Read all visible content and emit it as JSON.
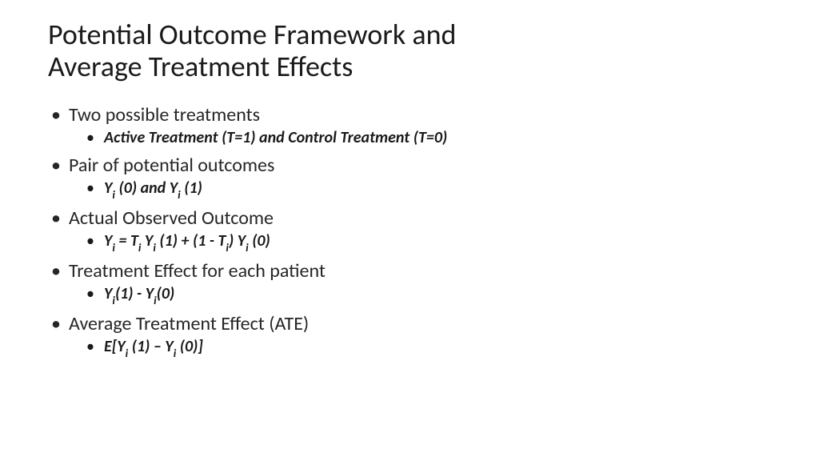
{
  "slide": {
    "title_line1": "Potential Outcome Framework and",
    "title_line2": "Average Treatment Effects",
    "title_fontsize": 36,
    "title_color": "#1a1a1a",
    "body_color": "#262626",
    "bullets": [
      {
        "text": "Two possible treatments",
        "sub": {
          "plain": "Active Treatment (T=1) and Control Treatment (T=0)"
        }
      },
      {
        "text": "Pair of potential outcomes",
        "sub": {
          "formula": [
            {
              "t": "Y"
            },
            {
              "s": "i"
            },
            {
              "t": " (0) and Y"
            },
            {
              "s": "i"
            },
            {
              "t": " (1)"
            }
          ]
        }
      },
      {
        "text": "Actual Observed Outcome",
        "sub": {
          "formula": [
            {
              "t": "Y"
            },
            {
              "s": "i"
            },
            {
              "t": " = T"
            },
            {
              "s": "i"
            },
            {
              "t": " Y"
            },
            {
              "s": "i"
            },
            {
              "t": " (1) + (1 - T"
            },
            {
              "s": "i"
            },
            {
              "t": ") Y"
            },
            {
              "s": "i"
            },
            {
              "t": " (0)"
            }
          ]
        }
      },
      {
        "text": "Treatment Effect for each patient",
        "sub": {
          "formula": [
            {
              "t": "Y"
            },
            {
              "s": "i"
            },
            {
              "t": "(1) - Y"
            },
            {
              "s": "i"
            },
            {
              "t": "(0)"
            }
          ]
        }
      },
      {
        "text": "Average Treatment Effect (ATE)",
        "sub": {
          "formula": [
            {
              "t": "E[Y"
            },
            {
              "s": "i"
            },
            {
              "t": " (1) – Y"
            },
            {
              "s": "i"
            },
            {
              "t": " (0)]"
            }
          ]
        }
      }
    ],
    "bullet_fontsize_l1": 24,
    "bullet_fontsize_l2": 20,
    "background_color": "#ffffff"
  }
}
